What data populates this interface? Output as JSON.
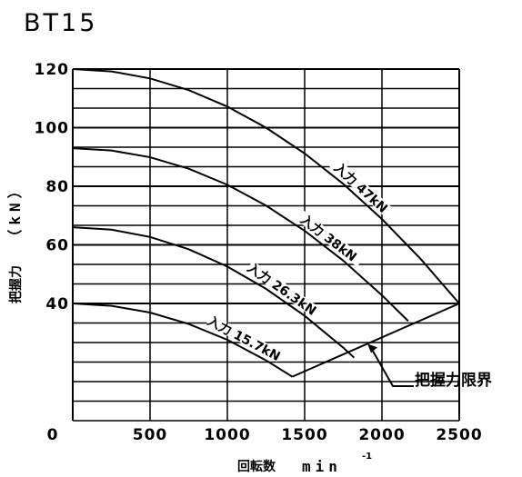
{
  "chart_data": {
    "type": "line",
    "title": "BT15",
    "xlabel": "回転数",
    "xunit": "min",
    "xunit_exp": "-1",
    "ylabel": "把握力",
    "yunit": "（kN）",
    "xlim": [
      0,
      2500
    ],
    "ylim": [
      0,
      120
    ],
    "x_ticks": [
      0,
      500,
      1000,
      1500,
      2000,
      2500
    ],
    "x_tick_labels": [
      "0",
      "500",
      "1000",
      "1500",
      "2000",
      "2500"
    ],
    "y_ticks": [
      40,
      60,
      80,
      100,
      120
    ],
    "y_tick_labels": [
      "40",
      "60",
      "80",
      "100",
      "120"
    ],
    "grid": true,
    "series": [
      {
        "name": "入力 47kN",
        "x": [
          0,
          250,
          500,
          750,
          1000,
          1250,
          1500,
          1750,
          2000,
          2250,
          2500
        ],
        "y": [
          120,
          119.2,
          116.8,
          112.8,
          107.2,
          100.0,
          91.2,
          80.8,
          68.8,
          55.2,
          40.0
        ]
      },
      {
        "name": "入力 38kN",
        "x": [
          0,
          250,
          500,
          750,
          1000,
          1250,
          1500,
          1750,
          2000,
          2170
        ],
        "y": [
          93,
          92.2,
          89.9,
          86.0,
          80.5,
          73.4,
          64.8,
          54.6,
          42.8,
          34.0
        ]
      },
      {
        "name": "入力 26.3kN",
        "x": [
          0,
          250,
          500,
          750,
          1000,
          1250,
          1500,
          1750,
          1820
        ],
        "y": [
          66,
          65.2,
          62.7,
          58.5,
          52.6,
          45.0,
          35.8,
          24.9,
          21.5
        ]
      },
      {
        "name": "入力 15.7kN",
        "x": [
          0,
          250,
          500,
          750,
          1000,
          1250,
          1420
        ],
        "y": [
          40,
          39.2,
          36.9,
          33.0,
          27.6,
          20.6,
          15.0
        ]
      }
    ],
    "limit_line": {
      "name": "把握力限界",
      "x": [
        1420,
        2500
      ],
      "y": [
        15,
        40
      ]
    }
  }
}
